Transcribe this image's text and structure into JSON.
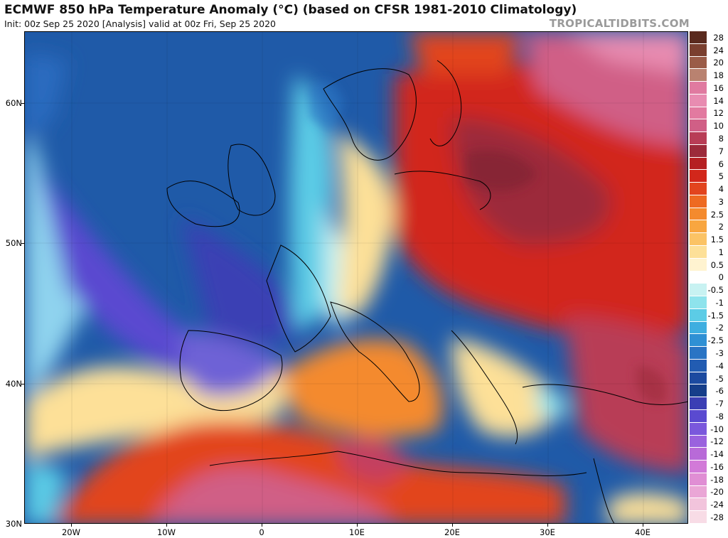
{
  "header": {
    "title": "ECMWF 850 hPa Temperature Anomaly (°C) (based on CFSR 1981-2010 Climatology)",
    "subtitle": "Init: 00z Sep 25 2020   [Analysis]   valid at 00z Fri, Sep 25 2020",
    "brand": "TROPICALTIDBITS.COM"
  },
  "map": {
    "lat_labels": [
      "60N",
      "50N",
      "40N",
      "30N"
    ],
    "lon_labels": [
      "20W",
      "10W",
      "0",
      "10E",
      "20E",
      "30E",
      "40E"
    ]
  },
  "colorbar": {
    "levels": [
      {
        "label": "28",
        "color": "#5a2a1e"
      },
      {
        "label": "24",
        "color": "#7a3f2f"
      },
      {
        "label": "20",
        "color": "#9a5c48"
      },
      {
        "label": "18",
        "color": "#b98270"
      },
      {
        "label": "16",
        "color": "#e07aa0"
      },
      {
        "label": "14",
        "color": "#e88cb1"
      },
      {
        "label": "12",
        "color": "#e27aa0"
      },
      {
        "label": "10",
        "color": "#d05f86"
      },
      {
        "label": "8",
        "color": "#b83d56"
      },
      {
        "label": "7",
        "color": "#9c2a3a"
      },
      {
        "label": "6",
        "color": "#b51f22"
      },
      {
        "label": "5",
        "color": "#d2271b"
      },
      {
        "label": "4",
        "color": "#e2441e"
      },
      {
        "label": "3",
        "color": "#ee6a22"
      },
      {
        "label": "2.5",
        "color": "#f48a2e"
      },
      {
        "label": "2",
        "color": "#f8a640"
      },
      {
        "label": "1.5",
        "color": "#fbc365"
      },
      {
        "label": "1",
        "color": "#fde098"
      },
      {
        "label": "0.5",
        "color": "#fff3d0"
      },
      {
        "label": "0",
        "color": "#ffffff"
      },
      {
        "label": "-0.5",
        "color": "#c8f2f2"
      },
      {
        "label": "-1",
        "color": "#8ee3ec"
      },
      {
        "label": "-1.5",
        "color": "#5ccce6"
      },
      {
        "label": "-2",
        "color": "#3eaee0"
      },
      {
        "label": "-2.5",
        "color": "#2f90d4"
      },
      {
        "label": "-3",
        "color": "#2a74c4"
      },
      {
        "label": "-4",
        "color": "#225cb2"
      },
      {
        "label": "-5",
        "color": "#1c4aa0"
      },
      {
        "label": "-6",
        "color": "#163e8a"
      },
      {
        "label": "-7",
        "color": "#3b3fb4"
      },
      {
        "label": "-8",
        "color": "#5a4ad0"
      },
      {
        "label": "-10",
        "color": "#7a58dc"
      },
      {
        "label": "-12",
        "color": "#9a62de"
      },
      {
        "label": "-14",
        "color": "#b86ad8"
      },
      {
        "label": "-16",
        "color": "#d27ad8"
      },
      {
        "label": "-18",
        "color": "#e08ed4"
      },
      {
        "label": "-20",
        "color": "#eaa6d6"
      },
      {
        "label": "-24",
        "color": "#f2c4dc"
      },
      {
        "label": "-28",
        "color": "#f8dce6"
      }
    ]
  }
}
